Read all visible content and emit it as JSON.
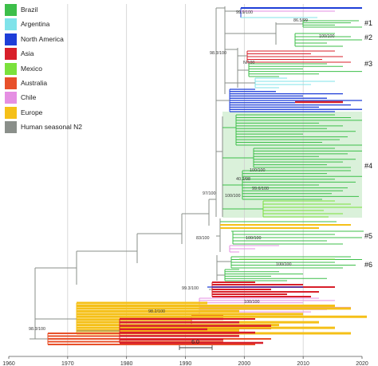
{
  "legend": [
    {
      "label": "Brazil",
      "color": "#3dbf4a"
    },
    {
      "label": "Argentina",
      "color": "#7fe3ea"
    },
    {
      "label": "North America",
      "color": "#1e3ed8"
    },
    {
      "label": "Asia",
      "color": "#d81f2a"
    },
    {
      "label": "Mexico",
      "color": "#7be13c"
    },
    {
      "label": "Australia",
      "color": "#e8502a"
    },
    {
      "label": "Chile",
      "color": "#e58fe3"
    },
    {
      "label": "Europe",
      "color": "#f5c018"
    },
    {
      "label": "Human seasonal N2",
      "color": "#8a8f8a"
    }
  ],
  "axis": {
    "ticks": [
      "1960",
      "1970",
      "1980",
      "1990",
      "2000",
      "2010",
      "2020"
    ],
    "tick_values": [
      1960,
      1970,
      1980,
      1990,
      2000,
      2010,
      2020
    ],
    "range": [
      1960,
      2020
    ]
  },
  "scale_bar": "6.0",
  "clades": [
    "#1",
    "#2",
    "#3",
    "#4",
    "#5",
    "#6"
  ],
  "supports": [
    "99.9/100",
    "86.5/99",
    "100/100",
    "98.3/100",
    "N/100",
    "40.2/98",
    "100/100",
    "97/100",
    "100/100",
    "99.6/100",
    "83/100",
    "100/100",
    "100/100",
    "99.3/100",
    "98.2/100",
    "100/100",
    "98.3/100"
  ]
}
